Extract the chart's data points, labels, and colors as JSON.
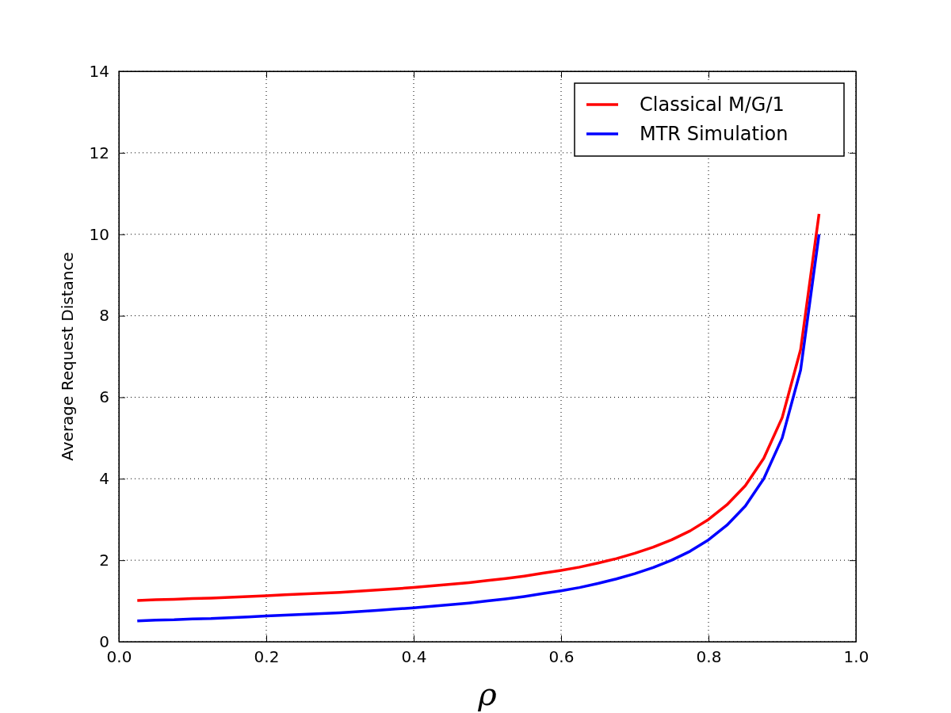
{
  "chart_data": {
    "type": "line",
    "xlabel": "ρ",
    "ylabel": "Average Request Distance",
    "x": [
      0.025,
      0.05,
      0.075,
      0.1,
      0.125,
      0.15,
      0.175,
      0.2,
      0.225,
      0.25,
      0.275,
      0.3,
      0.325,
      0.35,
      0.375,
      0.4,
      0.425,
      0.45,
      0.475,
      0.5,
      0.525,
      0.55,
      0.575,
      0.6,
      0.625,
      0.65,
      0.675,
      0.7,
      0.725,
      0.75,
      0.775,
      0.8,
      0.825,
      0.85,
      0.875,
      0.9,
      0.925,
      0.95
    ],
    "series": [
      {
        "name": "Classical M/G/1",
        "color": "#ff0000",
        "values": [
          1.01,
          1.03,
          1.04,
          1.06,
          1.07,
          1.09,
          1.11,
          1.13,
          1.15,
          1.17,
          1.19,
          1.21,
          1.24,
          1.27,
          1.3,
          1.33,
          1.37,
          1.41,
          1.45,
          1.5,
          1.55,
          1.61,
          1.68,
          1.75,
          1.83,
          1.93,
          2.04,
          2.17,
          2.32,
          2.5,
          2.72,
          3,
          3.36,
          3.83,
          4.5,
          5.5,
          7.17,
          10.5
        ]
      },
      {
        "name": "MTR Simulation",
        "color": "#0000ff",
        "values": [
          0.51,
          0.53,
          0.54,
          0.56,
          0.57,
          0.59,
          0.61,
          0.63,
          0.65,
          0.67,
          0.69,
          0.71,
          0.74,
          0.77,
          0.8,
          0.83,
          0.87,
          0.91,
          0.95,
          1,
          1.05,
          1.11,
          1.18,
          1.25,
          1.33,
          1.43,
          1.54,
          1.67,
          1.82,
          2,
          2.22,
          2.5,
          2.86,
          3.33,
          4,
          5,
          6.67,
          10
        ]
      }
    ],
    "xlim": [
      0,
      1
    ],
    "xticks": [
      {
        "value": 0,
        "label": "0.0"
      },
      {
        "value": 0.2,
        "label": "0.2"
      },
      {
        "value": 0.4,
        "label": "0.4"
      },
      {
        "value": 0.6,
        "label": "0.6"
      },
      {
        "value": 0.8,
        "label": "0.8"
      },
      {
        "value": 1,
        "label": "1.0"
      }
    ],
    "ylim": [
      0,
      14
    ],
    "yticks": [
      0,
      2,
      4,
      6,
      8,
      10,
      12,
      14
    ],
    "grid": true,
    "legend": "top right",
    "line_style": "solid",
    "marker": "none"
  }
}
